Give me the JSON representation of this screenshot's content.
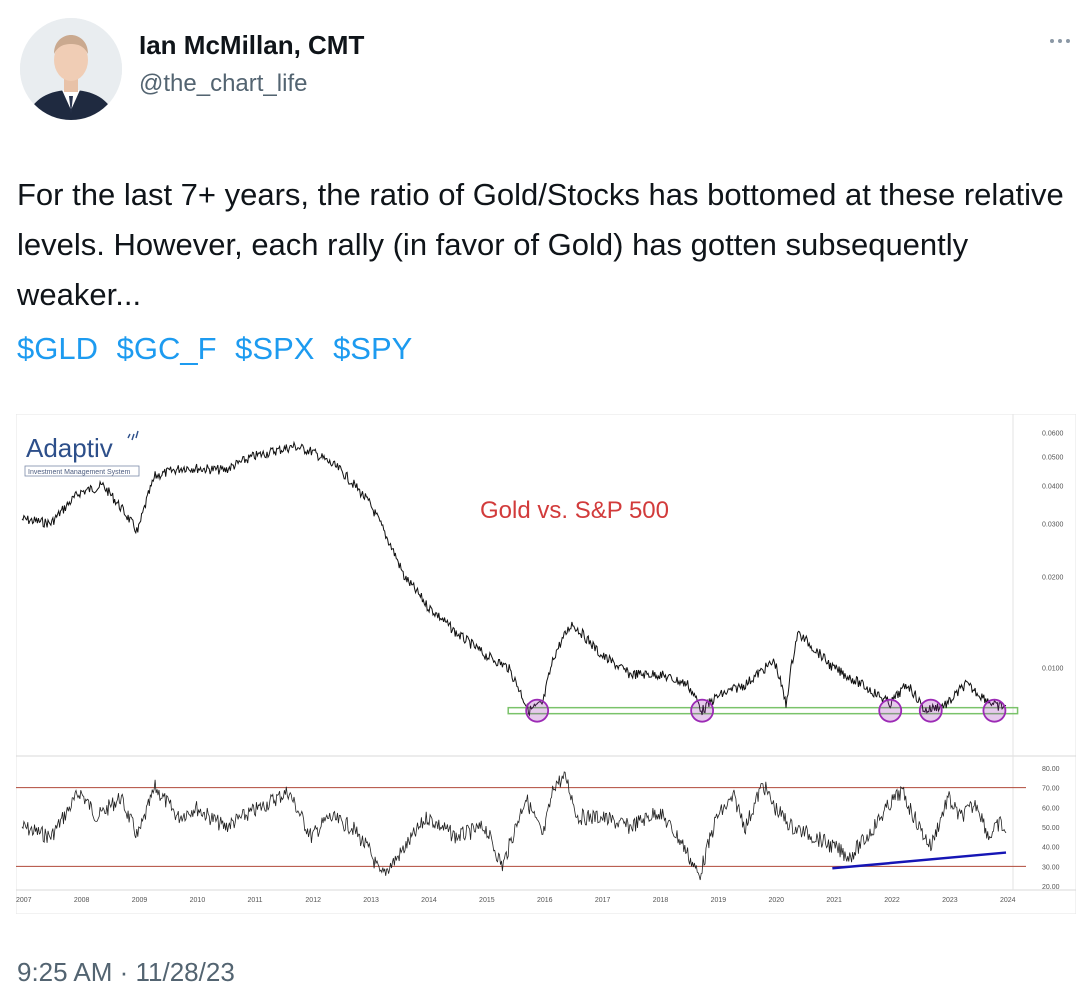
{
  "author": {
    "name": "Ian McMillan, CMT",
    "handle": "@the_chart_life"
  },
  "tweet": {
    "text": "For the last 7+ years, the ratio of Gold/Stocks has bottomed at these relative levels. However, each rally (in favor of Gold) has gotten subsequently weaker...",
    "hashtags": [
      "$GLD",
      "$GC_F",
      "$SPX",
      "$SPY"
    ],
    "timestamp": "9:25 AM · 11/28/23"
  },
  "colors": {
    "link": "#1d9bf0",
    "chart_title": "#d23b3b",
    "support_line": "#7ac36a",
    "bottom_circle": "#9c2ab5",
    "trendline": "#1515b5",
    "rsi_bands": "#b04a3a"
  },
  "logo": {
    "text": "Adaptiv",
    "subtitle": "Investment Management System"
  },
  "icons": {
    "more": "more-horizontal-icon"
  },
  "chart_data": [
    {
      "type": "line",
      "title": "Gold vs. S&P 500",
      "y_scale": "log",
      "y_ticks": [
        "0.0600",
        "0.0500",
        "0.0400",
        "0.0300",
        "0.0200",
        "0.0100"
      ],
      "x_ticks": [
        "2007",
        "2008",
        "2009",
        "2010",
        "2011",
        "2012",
        "2013",
        "2014",
        "2015",
        "2016",
        "2017",
        "2018",
        "2019",
        "2020",
        "2021",
        "2022",
        "2023",
        "2024"
      ],
      "series": [
        {
          "x": [
            2007.0,
            2007.5,
            2008.0,
            2008.4,
            2008.8,
            2009.0,
            2009.3,
            2009.8,
            2010.5,
            2011.0,
            2011.7,
            2012.0,
            2012.5,
            2013.0,
            2013.3,
            2013.6,
            2014.0,
            2014.5,
            2015.0,
            2015.4,
            2015.75,
            2016.0,
            2016.2,
            2016.5,
            2017.0,
            2017.5,
            2018.0,
            2018.5,
            2018.75,
            2019.0,
            2019.5,
            2020.0,
            2020.2,
            2020.4,
            2020.6,
            2021.0,
            2021.5,
            2022.0,
            2022.3,
            2022.6,
            2022.8,
            2023.0,
            2023.3,
            2023.6,
            2023.85,
            2024.0
          ],
          "y": [
            0.031,
            0.03,
            0.038,
            0.04,
            0.032,
            0.028,
            0.043,
            0.046,
            0.045,
            0.05,
            0.054,
            0.052,
            0.045,
            0.035,
            0.027,
            0.02,
            0.016,
            0.013,
            0.011,
            0.01,
            0.0072,
            0.0076,
            0.011,
            0.014,
            0.011,
            0.0095,
            0.0095,
            0.0088,
            0.0072,
            0.008,
            0.0088,
            0.0105,
            0.0075,
            0.013,
            0.012,
            0.01,
            0.0088,
            0.0076,
            0.0088,
            0.0072,
            0.0074,
            0.0076,
            0.0088,
            0.008,
            0.0074,
            0.0075
          ]
        }
      ],
      "support_level": 0.0072,
      "marked_bottoms_x": [
        2015.9,
        2018.75,
        2022.0,
        2022.7,
        2023.8
      ]
    },
    {
      "type": "line",
      "y_ticks": [
        "80.00",
        "70.00",
        "60.00",
        "50.00",
        "40.00",
        "30.00",
        "20.00"
      ],
      "y_range": [
        20,
        80
      ],
      "bands": [
        30,
        70
      ],
      "series": [
        {
          "x": [
            2007.0,
            2007.5,
            2008.0,
            2008.3,
            2008.7,
            2009.0,
            2009.3,
            2009.7,
            2010.0,
            2010.5,
            2011.0,
            2011.6,
            2012.0,
            2012.3,
            2012.7,
            2013.0,
            2013.2,
            2013.5,
            2014.0,
            2014.5,
            2015.0,
            2015.3,
            2015.7,
            2016.0,
            2016.2,
            2016.4,
            2016.6,
            2017.0,
            2017.5,
            2018.0,
            2018.4,
            2018.7,
            2019.0,
            2019.3,
            2019.5,
            2019.8,
            2020.0,
            2020.3,
            2020.7,
            2021.0,
            2021.3,
            2021.6,
            2022.0,
            2022.2,
            2022.5,
            2022.7,
            2023.0,
            2023.2,
            2023.5,
            2023.7,
            2023.9,
            2024.0
          ],
          "y": [
            50,
            45,
            68,
            55,
            65,
            45,
            70,
            55,
            60,
            50,
            58,
            68,
            45,
            55,
            50,
            38,
            25,
            35,
            55,
            45,
            50,
            30,
            65,
            45,
            72,
            75,
            55,
            55,
            50,
            58,
            42,
            25,
            55,
            65,
            50,
            72,
            60,
            50,
            45,
            40,
            35,
            45,
            62,
            68,
            50,
            40,
            65,
            55,
            62,
            45,
            52,
            47
          ]
        }
      ],
      "trendline": {
        "x": [
          2021.0,
          2024.0
        ],
        "y": [
          29,
          37
        ]
      }
    }
  ]
}
